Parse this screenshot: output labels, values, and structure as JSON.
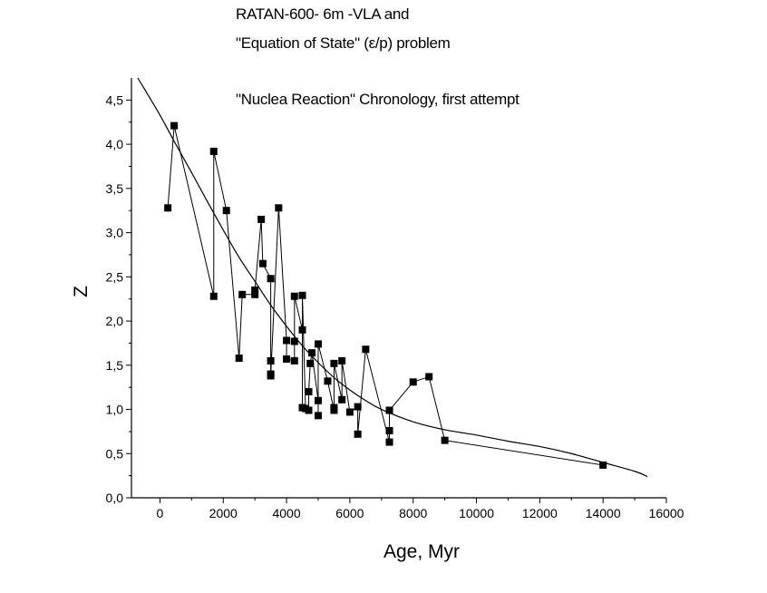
{
  "chart_data": {
    "type": "line",
    "title_lines": [
      "RATAN-600- 6m -VLA and",
      "\"Equation of State\" (ε/p) problem"
    ],
    "annotation": "\"Nuclea Reaction\" Chronology, first attempt",
    "xlabel": "Age, Myr",
    "ylabel": "Z",
    "xlim": [
      -900,
      16000
    ],
    "ylim": [
      0,
      4.75
    ],
    "x_ticks": [
      0,
      2000,
      4000,
      6000,
      8000,
      10000,
      12000,
      14000,
      16000
    ],
    "x_tick_labels": [
      "0",
      "2000",
      "4000",
      "6000",
      "8000",
      "10000",
      "12000",
      "14000",
      "16000"
    ],
    "y_ticks": [
      0,
      0.5,
      1.0,
      1.5,
      2.0,
      2.5,
      3.0,
      3.5,
      4.0,
      4.5
    ],
    "y_tick_labels": [
      "0,0",
      "0,5",
      "1,0",
      "1,5",
      "2,0",
      "2,5",
      "3,0",
      "3,5",
      "4,0",
      "4,5"
    ],
    "series": [
      {
        "name": "data",
        "style": "line+square markers",
        "x": [
          250,
          450,
          1700,
          1700,
          2100,
          2500,
          2600,
          3000,
          3000,
          3200,
          3250,
          3500,
          3500,
          3500,
          3500,
          3750,
          4000,
          4000,
          4250,
          4250,
          4250,
          4500,
          4500,
          4500,
          4600,
          4700,
          4700,
          4750,
          4800,
          5000,
          5000,
          5000,
          5300,
          5500,
          5500,
          5500,
          5750,
          5750,
          6000,
          6250,
          6250,
          6500,
          7250,
          7250,
          7250,
          8000,
          8500,
          9000,
          14000
        ],
        "y": [
          3.28,
          4.21,
          2.28,
          3.92,
          3.25,
          1.58,
          2.3,
          2.3,
          2.35,
          3.15,
          2.65,
          2.48,
          1.55,
          1.4,
          1.38,
          3.28,
          1.78,
          1.57,
          1.55,
          1.77,
          2.28,
          1.9,
          1.02,
          2.29,
          1.01,
          0.99,
          1.2,
          1.52,
          1.64,
          1.1,
          0.93,
          1.74,
          1.32,
          0.99,
          1.02,
          1.52,
          1.11,
          1.55,
          0.97,
          1.03,
          0.72,
          1.68,
          0.63,
          0.76,
          0.99,
          1.31,
          1.37,
          0.65,
          0.37
        ]
      },
      {
        "name": "fit",
        "style": "smooth curve",
        "x": [
          -700,
          0,
          500,
          1000,
          1500,
          2000,
          2500,
          3000,
          3500,
          4000,
          4500,
          5000,
          5500,
          6000,
          6500,
          7000,
          8000,
          9000,
          10000,
          11000,
          12000,
          13000,
          14000,
          15000,
          15400
        ],
        "y": [
          4.75,
          4.33,
          4.0,
          3.68,
          3.35,
          3.03,
          2.72,
          2.45,
          2.18,
          1.94,
          1.72,
          1.53,
          1.36,
          1.22,
          1.1,
          1.0,
          0.86,
          0.77,
          0.71,
          0.64,
          0.58,
          0.5,
          0.4,
          0.3,
          0.24
        ]
      }
    ]
  }
}
